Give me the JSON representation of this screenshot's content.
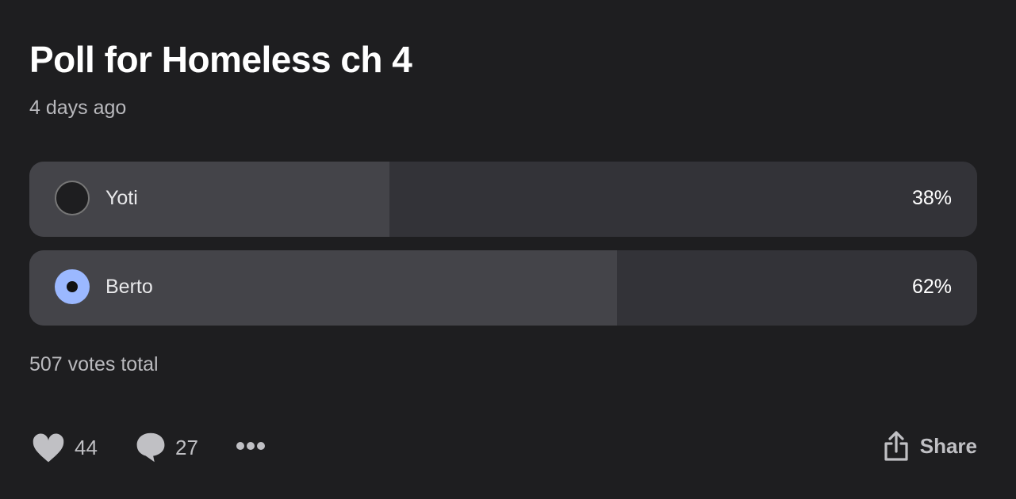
{
  "post": {
    "title": "Poll for Homeless ch 4",
    "time": "4 days ago"
  },
  "poll": {
    "options": [
      {
        "label": "Yoti",
        "percent_label": "38%",
        "percent": 38,
        "selected": false
      },
      {
        "label": "Berto",
        "percent_label": "62%",
        "percent": 62,
        "selected": true
      }
    ],
    "votes_total": "507 votes total",
    "accent_color": "#9bb8ff"
  },
  "actions": {
    "likes": "44",
    "comments": "27",
    "share_label": "Share"
  }
}
